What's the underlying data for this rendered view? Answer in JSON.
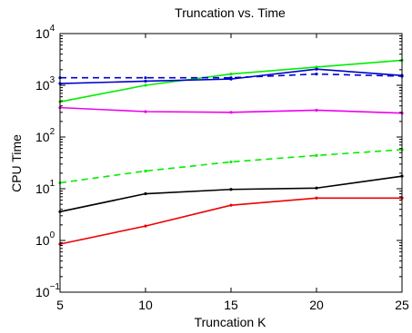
{
  "chart_data": {
    "type": "line",
    "title": "Truncation vs. Time",
    "xlabel": "Truncation K",
    "ylabel": "CPU Time",
    "xlim": [
      5,
      25
    ],
    "ylim": [
      0.1,
      10000
    ],
    "yscale": "log",
    "grid": false,
    "legend": "none",
    "x_ticks": [
      5,
      10,
      15,
      20,
      25
    ],
    "y_ticks": [
      {
        "value": 0.1,
        "base": "10",
        "exp": "−1"
      },
      {
        "value": 1,
        "base": "10",
        "exp": "0"
      },
      {
        "value": 10,
        "base": "10",
        "exp": "1"
      },
      {
        "value": 100,
        "base": "10",
        "exp": "2"
      },
      {
        "value": 1000,
        "base": "10",
        "exp": "3"
      },
      {
        "value": 10000,
        "base": "10",
        "exp": "4"
      }
    ],
    "x": [
      5,
      10,
      15,
      20,
      25
    ],
    "series": [
      {
        "color": "#00ee00",
        "style": "solid",
        "marker": "point",
        "values": [
          480,
          1000,
          1650,
          2250,
          3050
        ]
      },
      {
        "color": "#0000cc",
        "style": "dashed",
        "marker": "point",
        "values": [
          1400,
          1400,
          1400,
          1650,
          1500
        ]
      },
      {
        "color": "#0000cc",
        "style": "solid",
        "marker": "point",
        "values": [
          1080,
          1200,
          1320,
          2050,
          1550
        ]
      },
      {
        "color": "#ee00ee",
        "style": "solid",
        "marker": "point",
        "values": [
          370,
          310,
          300,
          330,
          290
        ]
      },
      {
        "color": "#00ee00",
        "style": "dashed",
        "marker": "point",
        "values": [
          13,
          22,
          33,
          44,
          57
        ]
      },
      {
        "color": "#000000",
        "style": "solid",
        "marker": "point",
        "values": [
          3.6,
          8,
          9.7,
          10.3,
          17.5
        ]
      },
      {
        "color": "#ee0000",
        "style": "solid",
        "marker": "point",
        "values": [
          0.85,
          1.9,
          4.8,
          6.6,
          6.6
        ]
      }
    ]
  }
}
